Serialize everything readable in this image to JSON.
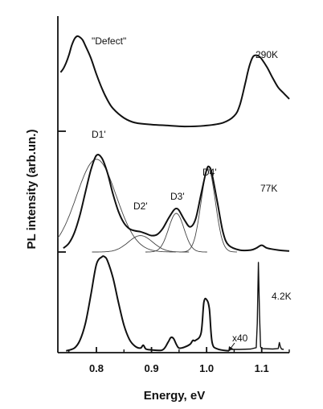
{
  "chart_data": {
    "type": "line",
    "title": "",
    "xlabel": "Energy, eV",
    "ylabel": "PL intensity (arb.un.)",
    "xlim": [
      0.73,
      1.15
    ],
    "x_ticks": [
      "0.8",
      "0.9",
      "1.0",
      "1.1"
    ],
    "x_tick_values": [
      0.8,
      0.9,
      1.0,
      1.1
    ],
    "grid": false,
    "legend": "none",
    "series": [
      {
        "name": "290K",
        "x": [
          0.735,
          0.74,
          0.745,
          0.75,
          0.755,
          0.76,
          0.765,
          0.77,
          0.775,
          0.78,
          0.79,
          0.8,
          0.81,
          0.82,
          0.83,
          0.85,
          0.87,
          0.9,
          0.93,
          0.96,
          1.0,
          1.03,
          1.05,
          1.06,
          1.07,
          1.075,
          1.08,
          1.085,
          1.09,
          1.095,
          1.1,
          1.11,
          1.12,
          1.13,
          1.14,
          1.15
        ],
        "values": [
          0.62,
          0.66,
          0.72,
          0.8,
          0.9,
          0.97,
          1.0,
          0.99,
          0.96,
          0.9,
          0.77,
          0.6,
          0.45,
          0.33,
          0.24,
          0.14,
          0.09,
          0.07,
          0.06,
          0.05,
          0.06,
          0.09,
          0.16,
          0.27,
          0.5,
          0.63,
          0.73,
          0.79,
          0.8,
          0.79,
          0.76,
          0.67,
          0.56,
          0.46,
          0.4,
          0.34
        ]
      },
      {
        "name": "77K",
        "x": [
          0.74,
          0.75,
          0.76,
          0.77,
          0.78,
          0.79,
          0.8,
          0.81,
          0.82,
          0.83,
          0.84,
          0.85,
          0.86,
          0.87,
          0.88,
          0.89,
          0.9,
          0.91,
          0.92,
          0.93,
          0.94,
          0.945,
          0.95,
          0.96,
          0.97,
          0.98,
          0.99,
          1.0,
          1.005,
          1.01,
          1.02,
          1.03,
          1.04,
          1.06,
          1.08,
          1.09,
          1.1,
          1.11,
          1.13,
          1.15
        ],
        "values": [
          0.04,
          0.09,
          0.2,
          0.38,
          0.62,
          0.85,
          1.0,
          0.97,
          0.82,
          0.6,
          0.42,
          0.3,
          0.24,
          0.22,
          0.21,
          0.19,
          0.17,
          0.18,
          0.24,
          0.34,
          0.43,
          0.45,
          0.43,
          0.33,
          0.26,
          0.34,
          0.6,
          0.85,
          0.88,
          0.8,
          0.5,
          0.2,
          0.07,
          0.02,
          0.02,
          0.04,
          0.07,
          0.04,
          0.02,
          0.01
        ]
      },
      {
        "name": "4.2K",
        "x": [
          0.745,
          0.76,
          0.77,
          0.78,
          0.79,
          0.8,
          0.81,
          0.815,
          0.82,
          0.83,
          0.84,
          0.85,
          0.86,
          0.87,
          0.88,
          0.885,
          0.89,
          0.9,
          0.92,
          0.93,
          0.935,
          0.94,
          0.945,
          0.95,
          0.96,
          0.97,
          0.975,
          0.98,
          0.99,
          0.995,
          1.0,
          1.005,
          1.01,
          1.02,
          1.04
        ],
        "values": [
          0.01,
          0.04,
          0.12,
          0.3,
          0.6,
          0.92,
          1.0,
          1.0,
          0.96,
          0.78,
          0.52,
          0.28,
          0.13,
          0.06,
          0.04,
          0.07,
          0.03,
          0.02,
          0.02,
          0.1,
          0.15,
          0.14,
          0.08,
          0.04,
          0.05,
          0.08,
          0.12,
          0.12,
          0.2,
          0.52,
          0.55,
          0.45,
          0.1,
          0.03,
          0.01
        ]
      },
      {
        "name": "4.2K x40",
        "x": [
          1.045,
          1.06,
          1.08,
          1.09,
          1.092,
          1.094,
          1.096,
          1.098,
          1.1,
          1.12,
          1.13,
          1.132,
          1.134,
          1.136,
          1.14
        ],
        "values": [
          0.0,
          0.0,
          0.005,
          0.02,
          0.3,
          1.0,
          0.4,
          0.03,
          0.01,
          0.005,
          0.01,
          0.08,
          0.03,
          0.005,
          0.0
        ]
      }
    ],
    "fitted_peaks": [
      {
        "name": "D1'",
        "center": 0.8,
        "width": 0.036,
        "amplitude": 0.96
      },
      {
        "name": "D2'",
        "center": 0.88,
        "width": 0.022,
        "amplitude": 0.17
      },
      {
        "name": "D3'",
        "center": 0.945,
        "width": 0.014,
        "amplitude": 0.4
      },
      {
        "name": "D4'",
        "center": 1.003,
        "width": 0.013,
        "amplitude": 0.86
      }
    ],
    "annotations": {
      "defect": "\"Defect\"",
      "t290": "290K",
      "t77": "77K",
      "t42": "4.2K",
      "d1": "D1'",
      "d2": "D2'",
      "d3": "D3'",
      "d4": "D4'",
      "x40": "x40"
    }
  }
}
